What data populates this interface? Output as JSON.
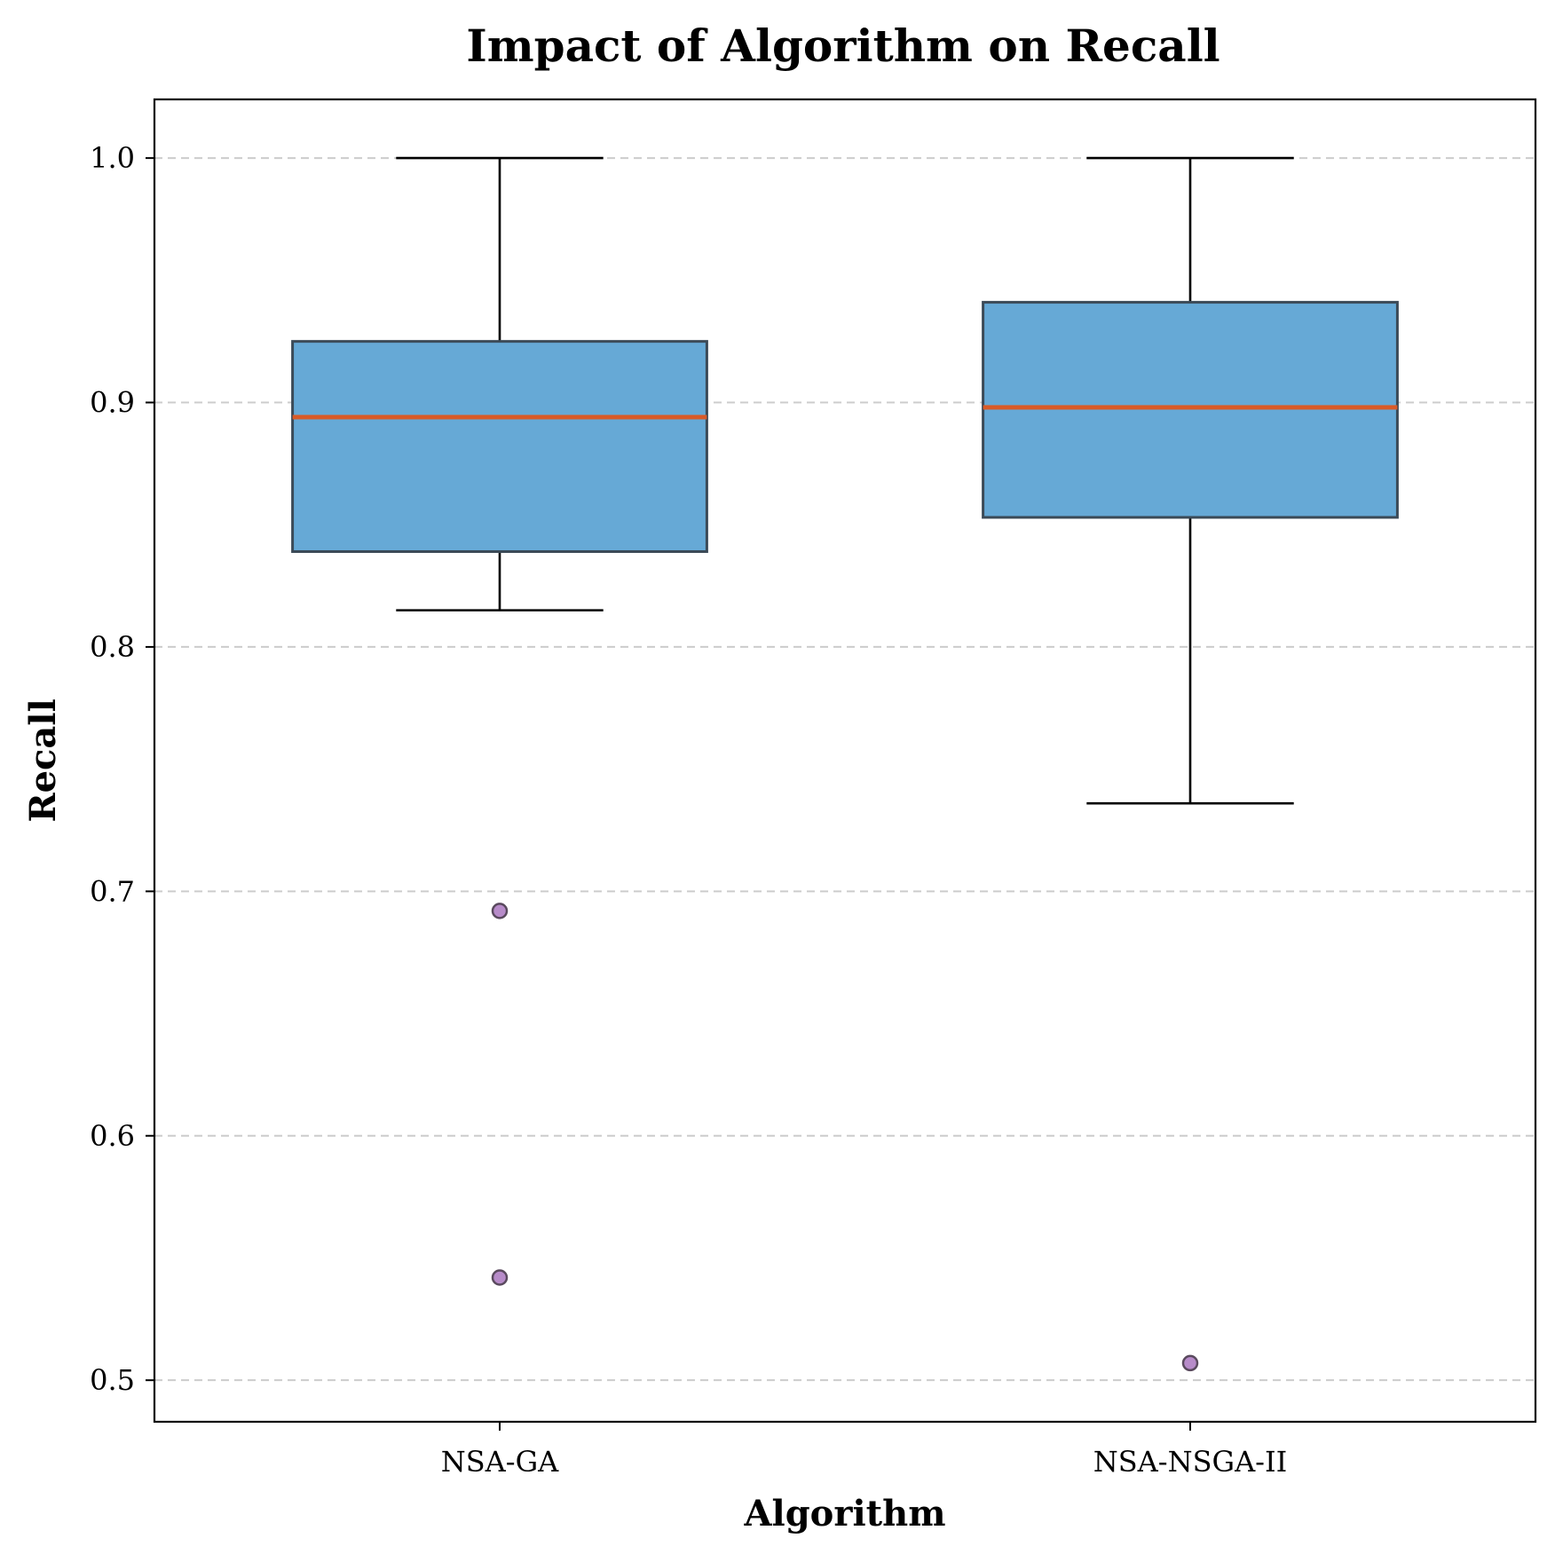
{
  "chart_data": {
    "type": "box",
    "title": "Impact of Algorithm on Recall",
    "xlabel": "Algorithm",
    "ylabel": "Recall",
    "ylim": [
      0.483,
      1.024
    ],
    "yticks": [
      0.5,
      0.6,
      0.7,
      0.8,
      0.9,
      1.0
    ],
    "ytick_labels": [
      "0.5",
      "0.6",
      "0.7",
      "0.8",
      "0.9",
      "1.0"
    ],
    "grid": "y-dashed",
    "categories": [
      "NSA-GA",
      "NSA-NSGA-II"
    ],
    "boxes": [
      {
        "category": "NSA-GA",
        "whisker_low": 0.815,
        "q1": 0.839,
        "median": 0.894,
        "q3": 0.925,
        "whisker_high": 1.0,
        "outliers": [
          0.692,
          0.542
        ]
      },
      {
        "category": "NSA-NSGA-II",
        "whisker_low": 0.736,
        "q1": 0.853,
        "median": 0.898,
        "q3": 0.941,
        "whisker_high": 1.0,
        "outliers": [
          0.507
        ]
      }
    ],
    "colors": {
      "box_fill": "#66a9d6",
      "box_edge": "#3b4a57",
      "median": "#d95a27",
      "whisker": "#000000",
      "outlier_fill": "#b78bc9",
      "outlier_edge": "#5a4a5e",
      "grid": "#cccccc"
    }
  }
}
